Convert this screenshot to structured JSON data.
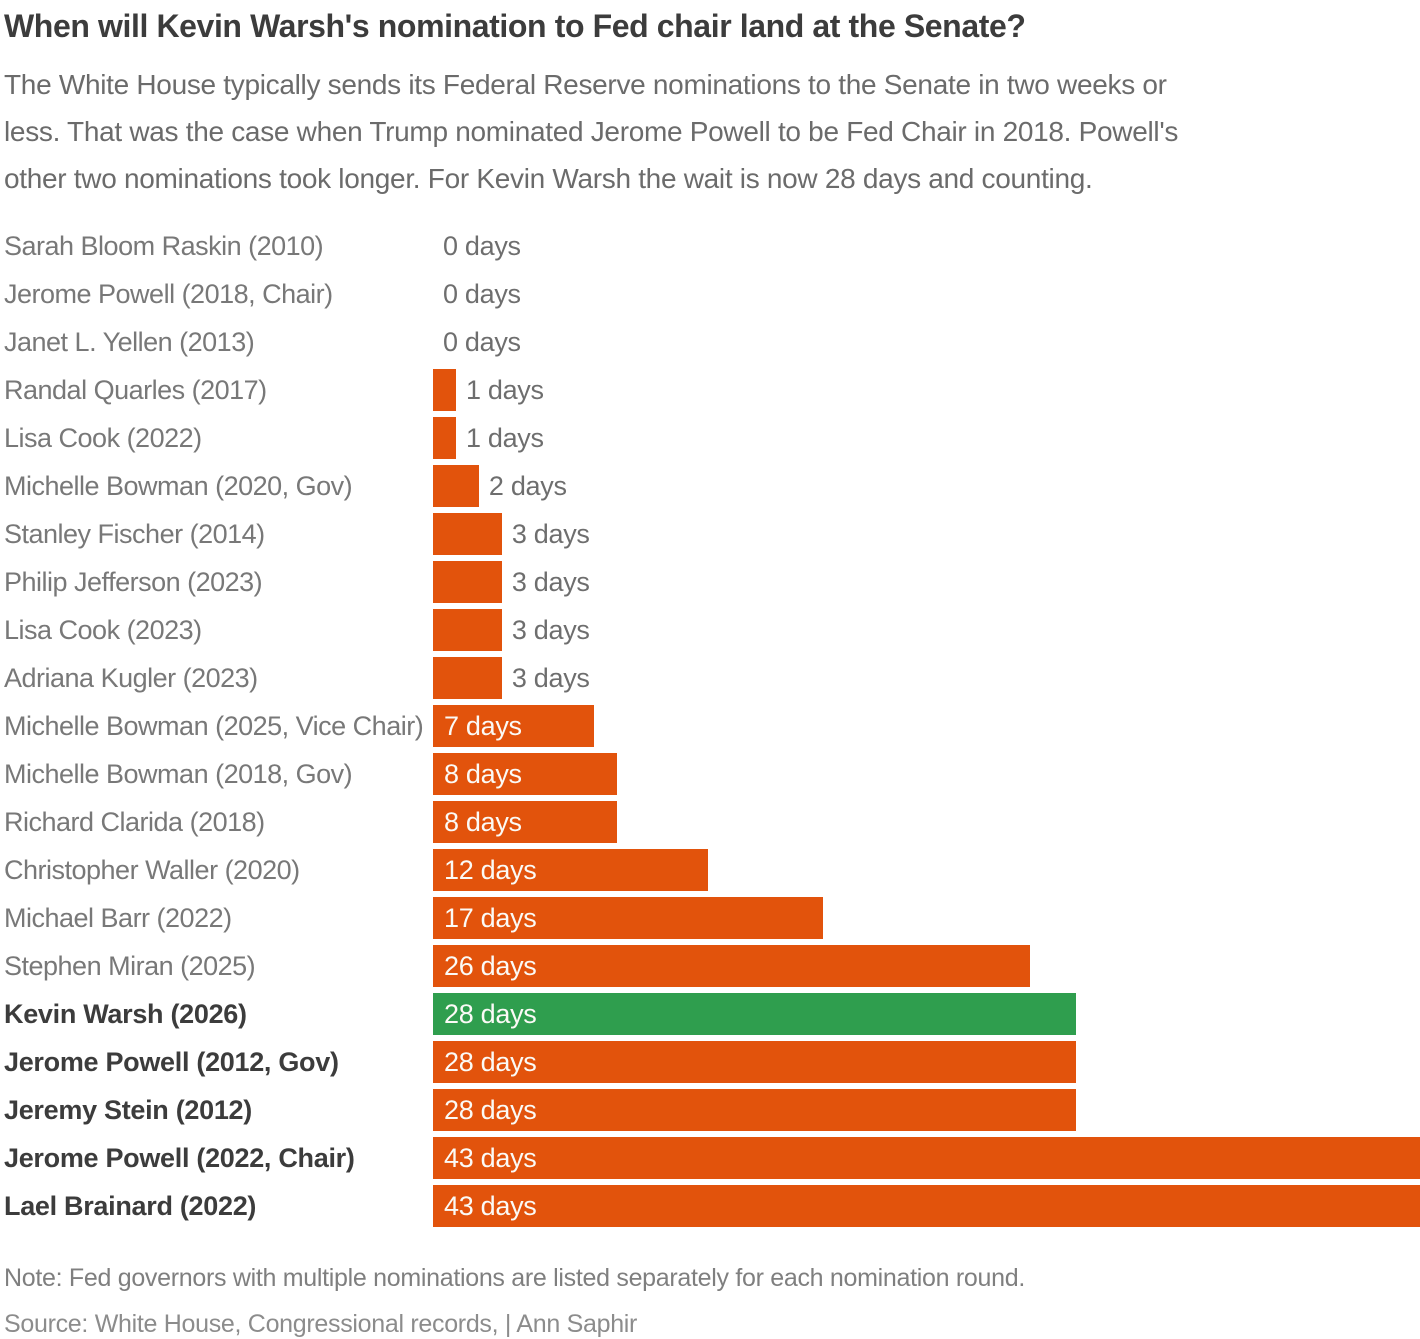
{
  "header": {
    "title": "When will Kevin Warsh's nomination to Fed chair land at the Senate?",
    "subtitle": "The White House typically sends its Federal Reserve nominations to the Senate in two weeks or\nless. That was the case when Trump nominated Jerome Powell to be Fed Chair in 2018. Powell's\nother two nominations took longer. For Kevin Warsh the wait is now 28 days and counting."
  },
  "chart_data": {
    "type": "bar",
    "orientation": "horizontal",
    "unit": "days",
    "xlim": [
      0,
      43
    ],
    "grid": false,
    "legend": false,
    "bar_color": "#E2530C",
    "highlight_color": "#2F9E4E",
    "inside_label_color": "#FBFAF6",
    "outside_label_color": "#6E6E6E",
    "label_inside_threshold": 7,
    "rows": [
      {
        "name": "Sarah Bloom Raskin (2010)",
        "value": 0,
        "label": "0 days",
        "bold": false,
        "highlight": false
      },
      {
        "name": "Jerome Powell (2018, Chair)",
        "value": 0,
        "label": "0 days",
        "bold": false,
        "highlight": false
      },
      {
        "name": "Janet L. Yellen (2013)",
        "value": 0,
        "label": "0 days",
        "bold": false,
        "highlight": false
      },
      {
        "name": "Randal Quarles (2017)",
        "value": 1,
        "label": "1 days",
        "bold": false,
        "highlight": false
      },
      {
        "name": "Lisa Cook (2022)",
        "value": 1,
        "label": "1 days",
        "bold": false,
        "highlight": false
      },
      {
        "name": "Michelle Bowman (2020, Gov)",
        "value": 2,
        "label": "2 days",
        "bold": false,
        "highlight": false
      },
      {
        "name": "Stanley Fischer (2014)",
        "value": 3,
        "label": "3 days",
        "bold": false,
        "highlight": false
      },
      {
        "name": "Philip Jefferson (2023)",
        "value": 3,
        "label": "3 days",
        "bold": false,
        "highlight": false
      },
      {
        "name": "Lisa Cook (2023)",
        "value": 3,
        "label": "3 days",
        "bold": false,
        "highlight": false
      },
      {
        "name": "Adriana Kugler (2023)",
        "value": 3,
        "label": "3 days",
        "bold": false,
        "highlight": false
      },
      {
        "name": "Michelle Bowman (2025, Vice Chair)",
        "value": 7,
        "label": "7 days",
        "bold": false,
        "highlight": false
      },
      {
        "name": "Michelle Bowman (2018, Gov)",
        "value": 8,
        "label": "8 days",
        "bold": false,
        "highlight": false
      },
      {
        "name": "Richard Clarida (2018)",
        "value": 8,
        "label": "8 days",
        "bold": false,
        "highlight": false
      },
      {
        "name": "Christopher Waller (2020)",
        "value": 12,
        "label": "12 days",
        "bold": false,
        "highlight": false
      },
      {
        "name": "Michael Barr (2022)",
        "value": 17,
        "label": "17 days",
        "bold": false,
        "highlight": false
      },
      {
        "name": "Stephen Miran (2025)",
        "value": 26,
        "label": "26 days",
        "bold": false,
        "highlight": false
      },
      {
        "name": "Kevin Warsh (2026)",
        "value": 28,
        "label": "28 days",
        "bold": true,
        "highlight": true
      },
      {
        "name": "Jerome Powell (2012, Gov)",
        "value": 28,
        "label": "28 days",
        "bold": true,
        "highlight": false
      },
      {
        "name": "Jeremy Stein (2012)",
        "value": 28,
        "label": "28 days",
        "bold": true,
        "highlight": false
      },
      {
        "name": "Jerome Powell (2022, Chair)",
        "value": 43,
        "label": "43 days",
        "bold": true,
        "highlight": false
      },
      {
        "name": "Lael Brainard (2022)",
        "value": 43,
        "label": "43 days",
        "bold": true,
        "highlight": false
      }
    ]
  },
  "footer": {
    "note": "Note: Fed governors with multiple nominations are listed separately for each nomination round.",
    "source": "Source: White House, Congressional records,  | Ann Saphir"
  }
}
